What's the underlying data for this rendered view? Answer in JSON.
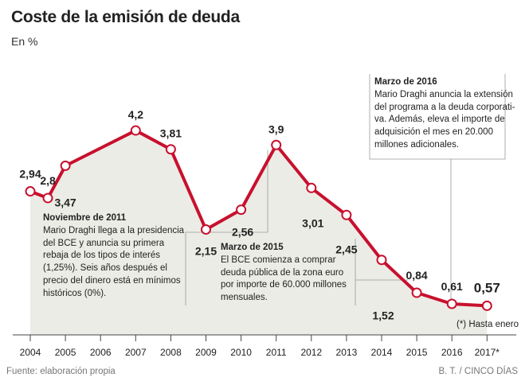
{
  "title": "Coste de la emisión de deuda",
  "subtitle": "En %",
  "source": "Fuente: elaboración propia",
  "credit": "B. T. / CINCO DÍAS",
  "footnote": "(*) Hasta enero",
  "colors": {
    "line": "#c8102e",
    "area": "#ecece6",
    "axis": "#444444",
    "guide": "#999999"
  },
  "annotations": {
    "nov2011": {
      "title": "Noviembre de 2011",
      "lines": [
        "Mario Draghi llega a la presidencia",
        "del BCE y anuncia su primera",
        "rebaja de los tipos de interés",
        "(1,25%). Seis años después el",
        "precio del dinero está en mínimos",
        "históricos (0%)."
      ]
    },
    "mar2015": {
      "title": "Marzo de 2015",
      "lines": [
        "El BCE comienza a comprar",
        "deuda pública de la zona euro",
        "por importe de 60.000 millones",
        "mensuales."
      ]
    },
    "mar2016": {
      "title": "Marzo de 2016",
      "lines": [
        "Mario Draghi anuncia la extensión",
        "del programa a la deuda corporati-",
        "va. Además, eleva el importe de",
        "adquisición el mes en 20.000",
        "millones adicionales."
      ]
    }
  },
  "chart_data": {
    "type": "line",
    "title": "Coste de la emisión de deuda",
    "ylabel": "En %",
    "xlabel": "",
    "grid": false,
    "ylim": [
      0,
      4.2
    ],
    "x": [
      "2004",
      "2005",
      "2006",
      "2007",
      "2008",
      "2009",
      "2010",
      "2011",
      "2012",
      "2013",
      "2014",
      "2015",
      "2016",
      "2017*"
    ],
    "series": [
      {
        "name": "Coste de la emisión de deuda",
        "points": [
          {
            "x": "2004",
            "label": "2,94",
            "y": 2.94
          },
          {
            "x": "2004.5",
            "label": "2,8",
            "y": 2.8
          },
          {
            "x": "2005",
            "label": "3,47",
            "y": 3.47
          },
          {
            "x": "2007",
            "label": "4,2",
            "y": 4.2
          },
          {
            "x": "2008",
            "label": "3,81",
            "y": 3.81
          },
          {
            "x": "2009",
            "label": "2,15",
            "y": 2.15
          },
          {
            "x": "2010",
            "label": "2,56",
            "y": 2.56
          },
          {
            "x": "2011",
            "label": "3,9",
            "y": 3.9
          },
          {
            "x": "2012",
            "label": "3,01",
            "y": 3.01
          },
          {
            "x": "2013",
            "label": "2,45",
            "y": 2.45
          },
          {
            "x": "2014",
            "label": "1,52",
            "y": 1.52
          },
          {
            "x": "2015",
            "label": "0,84",
            "y": 0.84
          },
          {
            "x": "2016",
            "label": "0,61",
            "y": 0.61
          },
          {
            "x": "2017*",
            "label": "0,57",
            "y": 0.57
          }
        ]
      }
    ]
  }
}
